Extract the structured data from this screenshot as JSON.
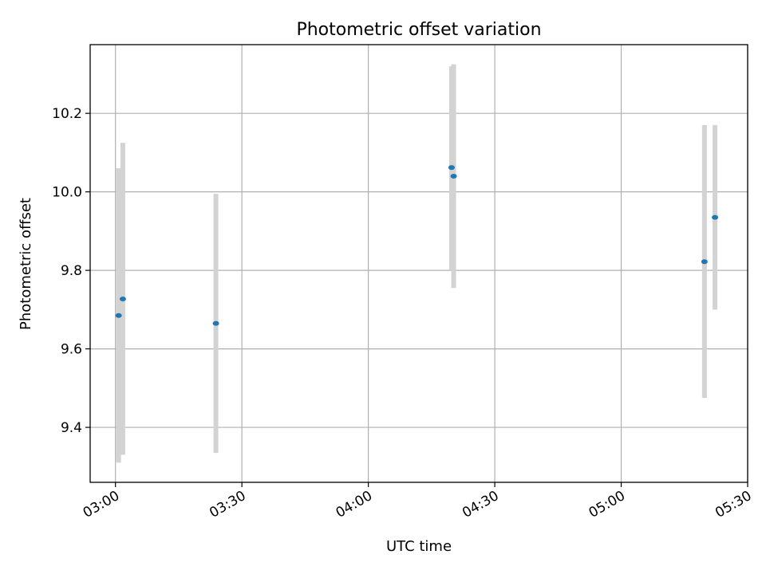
{
  "chart_data": {
    "type": "scatter",
    "title": "Photometric offset variation",
    "xlabel": "UTC time",
    "ylabel": "Photometric offset",
    "x_axis": {
      "kind": "time",
      "range": [
        "02:54",
        "05:30"
      ],
      "ticks": [
        {
          "time": "03:00",
          "label": "03:00"
        },
        {
          "time": "03:30",
          "label": "03:30"
        },
        {
          "time": "04:00",
          "label": "04:00"
        },
        {
          "time": "04:30",
          "label": "04:30"
        },
        {
          "time": "05:00",
          "label": "05:00"
        },
        {
          "time": "05:30",
          "label": "05:30"
        }
      ]
    },
    "y_axis": {
      "range": [
        9.26,
        10.375
      ],
      "ticks": [
        {
          "value": 9.4,
          "label": "9.4"
        },
        {
          "value": 9.6,
          "label": "9.6"
        },
        {
          "value": 9.8,
          "label": "9.8"
        },
        {
          "value": 10.0,
          "label": "10.0"
        },
        {
          "value": 10.2,
          "label": "10.2"
        }
      ]
    },
    "grid": true,
    "legend": "none",
    "colors": {
      "point": "#1f77b4",
      "errorbar": "#d3d3d3",
      "grid": "#b0b0b0",
      "axes": "#000000"
    },
    "points": [
      {
        "time": "03:00:45",
        "y": 9.685,
        "yerr_low": 9.31,
        "yerr_high": 10.06
      },
      {
        "time": "03:01:45",
        "y": 9.727,
        "yerr_low": 9.33,
        "yerr_high": 10.125
      },
      {
        "time": "03:23:50",
        "y": 9.665,
        "yerr_low": 9.335,
        "yerr_high": 9.995
      },
      {
        "time": "04:19:45",
        "y": 10.062,
        "yerr_low": 9.8,
        "yerr_high": 10.32
      },
      {
        "time": "04:20:15",
        "y": 10.04,
        "yerr_low": 9.755,
        "yerr_high": 10.325
      },
      {
        "time": "05:19:45",
        "y": 9.822,
        "yerr_low": 9.475,
        "yerr_high": 10.17
      },
      {
        "time": "05:22:15",
        "y": 9.935,
        "yerr_low": 9.7,
        "yerr_high": 10.17
      }
    ]
  }
}
